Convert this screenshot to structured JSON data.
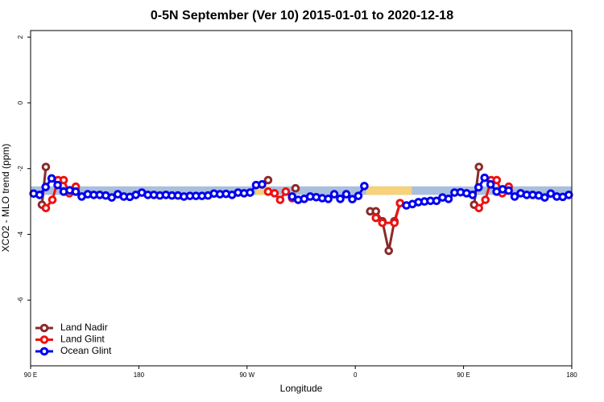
{
  "chart_data": {
    "type": "line",
    "title": "0-5N September (Ver 10)   2015-01-01 to 2020-12-18",
    "x_label": "Longitude",
    "y_label": "XCO2 - MLO trend (ppm)",
    "xlim": [
      90,
      540
    ],
    "ylim": [
      -8,
      2.2
    ],
    "xticks": [
      {
        "value": 90,
        "label": "90 E"
      },
      {
        "value": 180,
        "label": "180"
      },
      {
        "value": 270,
        "label": "90 W"
      },
      {
        "value": 360,
        "label": "0"
      },
      {
        "value": 450,
        "label": "90 E"
      },
      {
        "value": 540,
        "label": "180"
      }
    ],
    "yticks": [
      -6,
      -4,
      -2,
      0,
      2
    ],
    "legend": "bottom-left",
    "bands": [
      {
        "x": [
          90,
          540
        ],
        "y": [
          -2.8,
          -2.54
        ],
        "color": "#a9bfdc"
      },
      {
        "x": [
          277.5,
          289
        ],
        "y": [
          -2.8,
          -2.54
        ],
        "color": "#f7d27a"
      },
      {
        "x": [
          369,
          407
        ],
        "y": [
          -2.8,
          -2.54
        ],
        "color": "#f7d27a"
      }
    ],
    "series": [
      {
        "name": "Land Nadir",
        "color": "#8b2a2a",
        "x": [
          99.4,
          102.7,
          200,
          287.5,
          300,
          310.3,
          340,
          372.4,
          377.1,
          382.5,
          387.8,
          392.5,
          397.2,
          430,
          458.8,
          462.8
        ],
        "values": [
          -3.1,
          -1.95,
          null,
          -2.35,
          null,
          -2.6,
          null,
          -3.3,
          -3.3,
          -3.6,
          -4.5,
          -3.6,
          -3.05,
          null,
          -3.1,
          -1.95
        ]
      },
      {
        "name": "Land Glint",
        "color": "#ee1111",
        "x": [
          102.7,
          108.1,
          112.8,
          117.5,
          122.2,
          127.6,
          200,
          287.5,
          292.8,
          297.5,
          302.2,
          307.5,
          340,
          377.1,
          382.5,
          392.5,
          397.2,
          430,
          462.8,
          468.2,
          472.9,
          477.6,
          482.2,
          487.6
        ],
        "values": [
          -3.2,
          -2.95,
          -2.35,
          -2.35,
          -2.75,
          -2.55,
          null,
          -2.7,
          -2.75,
          -2.95,
          -2.7,
          -2.9,
          null,
          -3.5,
          -3.65,
          -3.65,
          -3.05,
          null,
          -3.2,
          -2.95,
          -2.35,
          -2.35,
          -2.75,
          -2.55
        ]
      },
      {
        "name": "Ocean Glint",
        "color": "#0000ee",
        "x": [
          92.5,
          97.5,
          102.5,
          107.5,
          112.5,
          117.5,
          122.5,
          127.5,
          132.5,
          137.5,
          142.5,
          147.5,
          152.5,
          157.5,
          162.5,
          167.5,
          172.5,
          177.5,
          182.5,
          187.5,
          192.5,
          197.5,
          202.5,
          207.5,
          212.5,
          217.5,
          222.5,
          227.5,
          232.5,
          237.5,
          242.5,
          247.5,
          252.5,
          257.5,
          262.5,
          267.5,
          272.5,
          277.5,
          282.5,
          287.5,
          292.5,
          297.5,
          302.5,
          307.5,
          312.5,
          317.5,
          322.5,
          327.5,
          332.5,
          337.5,
          342.5,
          347.5,
          352.5,
          357.5,
          362.5,
          367.5,
          372.5,
          377.5,
          382.5,
          387.5,
          392.5,
          397.5,
          402.5,
          407.5,
          412.5,
          417.5,
          422.5,
          427.5,
          432.5,
          437.5,
          442.5,
          447.5,
          452.5,
          457.5,
          462.5,
          467.5,
          472.5,
          477.5,
          482.5,
          487.5,
          492.5,
          497.5,
          502.5,
          507.5,
          512.5,
          517.5,
          522.5,
          527.5,
          532.5,
          537.5
        ],
        "values": [
          -2.76,
          -2.8,
          -2.56,
          -2.3,
          -2.5,
          -2.7,
          -2.66,
          -2.7,
          -2.85,
          -2.78,
          -2.8,
          -2.8,
          -2.82,
          -2.88,
          -2.78,
          -2.85,
          -2.86,
          -2.8,
          -2.73,
          -2.8,
          -2.8,
          -2.82,
          -2.8,
          -2.82,
          -2.82,
          -2.85,
          -2.83,
          -2.83,
          -2.83,
          -2.82,
          -2.76,
          -2.78,
          -2.77,
          -2.8,
          -2.73,
          -2.75,
          -2.73,
          -2.5,
          -2.48,
          null,
          null,
          null,
          null,
          -2.85,
          -2.95,
          -2.92,
          -2.85,
          -2.87,
          -2.9,
          -2.92,
          -2.78,
          -2.92,
          -2.78,
          -2.93,
          -2.83,
          -2.53,
          null,
          null,
          null,
          null,
          null,
          null,
          -3.12,
          -3.08,
          -3.02,
          -3.0,
          -2.98,
          -2.98,
          -2.88,
          -2.92,
          -2.73,
          -2.72,
          -2.75,
          -2.8,
          -2.57,
          -2.28,
          -2.48,
          -2.7,
          -2.63,
          -2.67,
          -2.85,
          -2.75,
          -2.8,
          -2.8,
          -2.82,
          -2.88,
          -2.76,
          -2.85,
          -2.86,
          -2.8
        ]
      }
    ]
  }
}
